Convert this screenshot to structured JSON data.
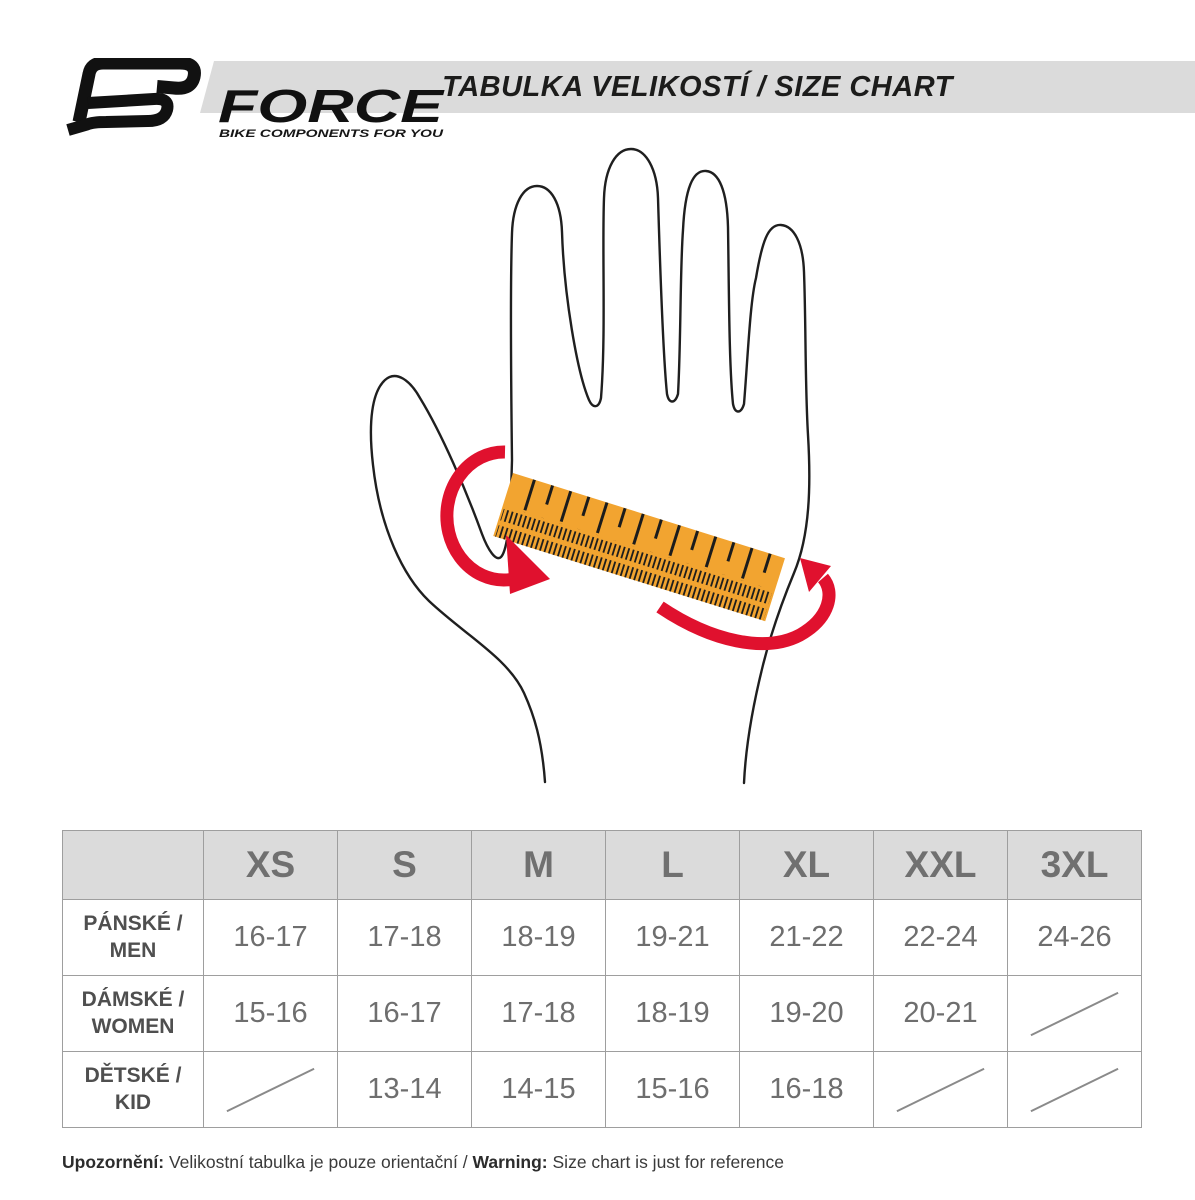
{
  "logo": {
    "brand": "FORCE",
    "tagline": "BIKE COMPONENTS FOR YOU"
  },
  "header": {
    "title": "TABULKA VELIKOSTÍ / SIZE CHART"
  },
  "illustration": {
    "description": "outlined hand with orange measuring ruler wrapped around palm and red wrap-around arrows"
  },
  "size_table": {
    "corner_label": "",
    "columns": [
      "XS",
      "S",
      "M",
      "L",
      "XL",
      "XXL",
      "3XL"
    ],
    "rows": [
      {
        "label_line1": "PÁNSKÉ /",
        "label_line2": "MEN",
        "values": [
          "16-17",
          "17-18",
          "18-19",
          "19-21",
          "21-22",
          "22-24",
          "24-26"
        ]
      },
      {
        "label_line1": "DÁMSKÉ /",
        "label_line2": "WOMEN",
        "values": [
          "15-16",
          "16-17",
          "17-18",
          "18-19",
          "19-20",
          "20-21",
          null
        ]
      },
      {
        "label_line1": "DĚTSKÉ /",
        "label_line2": "KID",
        "values": [
          null,
          "13-14",
          "14-15",
          "15-16",
          "16-18",
          null,
          null
        ]
      }
    ]
  },
  "footer": {
    "bold1": "Upozornění:",
    "text1": " Velikostní tabulka je pouze orientační / ",
    "bold2": "Warning:",
    "text2": " Size chart is just for reference"
  },
  "colors": {
    "accent_orange": "#F2A430",
    "accent_red": "#E0112E",
    "bar_gray": "#DBDBDB",
    "border_gray": "#9E9E9E"
  }
}
